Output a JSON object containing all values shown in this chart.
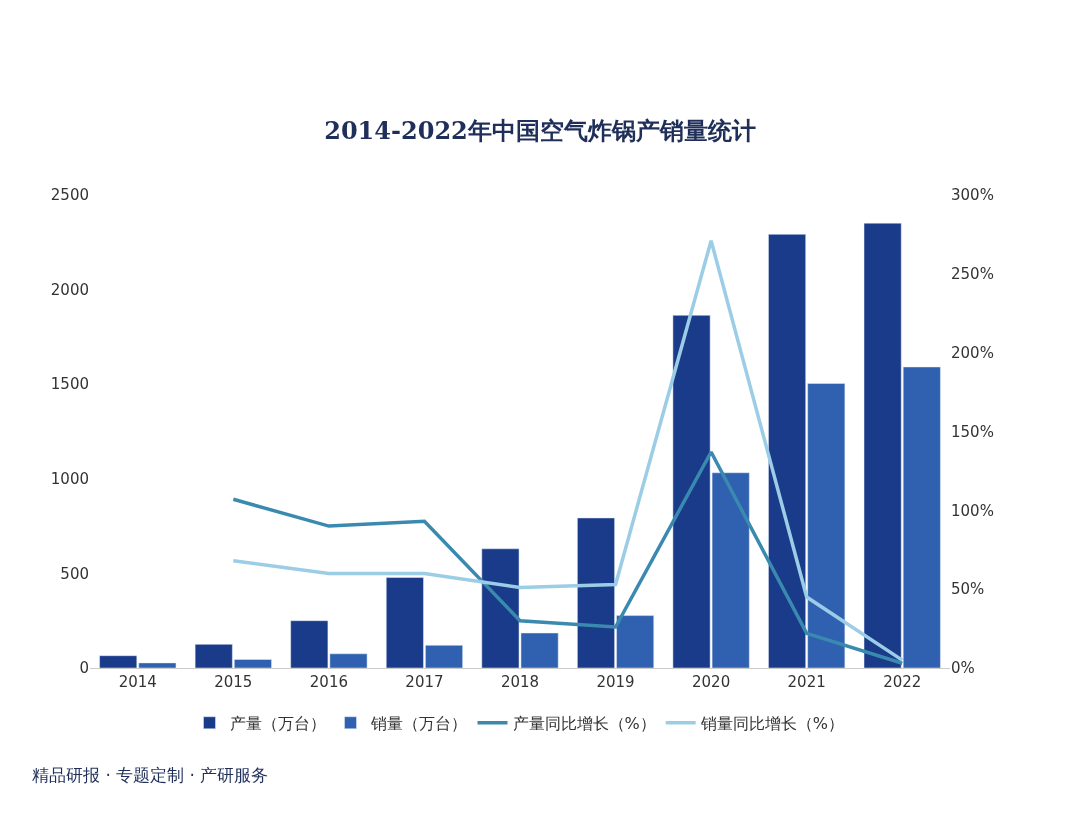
{
  "chart_data": {
    "type": "bar",
    "title": "2014-2022年中国空气炸锅产销量统计",
    "categories": [
      "2014",
      "2015",
      "2016",
      "2017",
      "2018",
      "2019",
      "2020",
      "2021",
      "2022"
    ],
    "series": [
      {
        "name": "产量（万台）",
        "color": "#1a3a8a",
        "values": [
          65,
          125,
          250,
          478,
          630,
          793,
          1864,
          2292,
          2351
        ]
      },
      {
        "name": "销量（万台）",
        "color": "#3060b0",
        "values": [
          27,
          45,
          75,
          120,
          185,
          277,
          1032,
          1504,
          1591
        ]
      },
      {
        "name": "产量同比增长（%）",
        "type": "line",
        "axis": "y2",
        "color": "#3a8ab0",
        "values": [
          null,
          107,
          90,
          93,
          30,
          26,
          137,
          22,
          3
        ]
      },
      {
        "name": "销量同比增长（%）",
        "type": "line",
        "axis": "y2",
        "color": "#9ccde6",
        "values": [
          null,
          68,
          60,
          60,
          51,
          53,
          271,
          45,
          5
        ]
      }
    ],
    "ylim": [
      0,
      2500
    ],
    "yticks": [
      0,
      500,
      1000,
      1500,
      2000,
      2500
    ],
    "y2lim": [
      0,
      300
    ],
    "y2ticks": [
      {
        "value": 0,
        "label": "0%"
      },
      {
        "value": 50,
        "label": "50%"
      },
      {
        "value": 100,
        "label": "100%"
      },
      {
        "value": 150,
        "label": "150%"
      },
      {
        "value": 200,
        "label": "200%"
      },
      {
        "value": 250,
        "label": "250%"
      },
      {
        "value": 300,
        "label": "300%"
      }
    ],
    "grid": false,
    "legend": "bottom",
    "marker": "none",
    "line_style": "solid",
    "annotations": [
      "精品研报 · 专题定制 · 产研服务"
    ]
  }
}
